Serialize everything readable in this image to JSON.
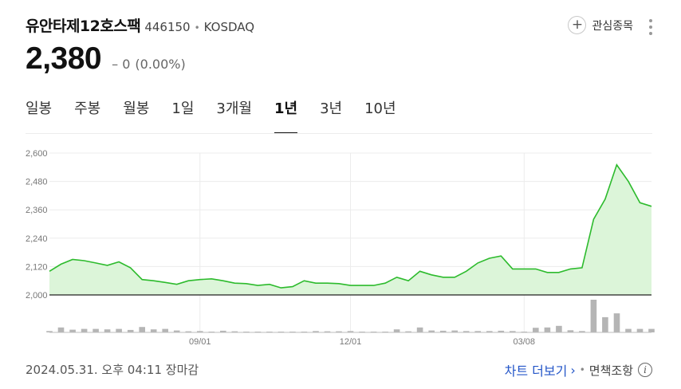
{
  "stock": {
    "name": "유안타제12호스팩",
    "code": "446150",
    "market": "KOSDAQ",
    "price": "2,380",
    "change": "0",
    "change_pct": "(0.00%)",
    "change_symbol": "–"
  },
  "header": {
    "favorite_label": "관심종목",
    "favorite_icon": "plus-icon",
    "more_icon": "more-vertical-icon"
  },
  "tabs": [
    {
      "label": "일봉"
    },
    {
      "label": "주봉"
    },
    {
      "label": "월봉"
    },
    {
      "label": "1일"
    },
    {
      "label": "3개월"
    },
    {
      "label": "1년"
    },
    {
      "label": "3년"
    },
    {
      "label": "10년"
    }
  ],
  "active_tab": "1년",
  "footer": {
    "timestamp": "2024.05.31. 오후 04:11 장마감",
    "more_chart": "차트 더보기",
    "disclaimer": "면책조항",
    "chevron_icon": "chevron-right-icon",
    "info_icon": "info-icon"
  },
  "colors": {
    "line": "#2dbb2d",
    "area": "#dcf5d9",
    "volume": "#b5b5b5"
  },
  "chart_data": {
    "type": "area",
    "y_ticks": [
      "2,600",
      "2,480",
      "2,360",
      "2,240",
      "2,120",
      "2,000"
    ],
    "ylim": [
      2000,
      2600
    ],
    "x_ticks": [
      "09/01",
      "12/01",
      "03/08"
    ],
    "x_tick_index": [
      13,
      26,
      41
    ],
    "grid": true,
    "series": [
      {
        "values": [
          2100,
          2130,
          2150,
          2145,
          2135,
          2125,
          2140,
          2115,
          2065,
          2060,
          2053,
          2045,
          2060,
          2065,
          2068,
          2060,
          2050,
          2048,
          2040,
          2045,
          2030,
          2035,
          2060,
          2050,
          2050,
          2048,
          2040,
          2040,
          2040,
          2050,
          2075,
          2060,
          2100,
          2085,
          2075,
          2075,
          2100,
          2135,
          2155,
          2165,
          2110,
          2110,
          2110,
          2095,
          2095,
          2110,
          2115,
          2320,
          2405,
          2550,
          2480,
          2390,
          2375
        ]
      }
    ],
    "volume": [
      5,
      18,
      10,
      13,
      13,
      11,
      13,
      9,
      20,
      11,
      13,
      7,
      4,
      5,
      3,
      6,
      4,
      3,
      3,
      3,
      3,
      3,
      3,
      5,
      4,
      4,
      5,
      3,
      3,
      3,
      11,
      4,
      18,
      7,
      6,
      7,
      5,
      5,
      5,
      6,
      5,
      3,
      17,
      18,
      24,
      8,
      5,
      120,
      56,
      70,
      13,
      13,
      13
    ]
  }
}
